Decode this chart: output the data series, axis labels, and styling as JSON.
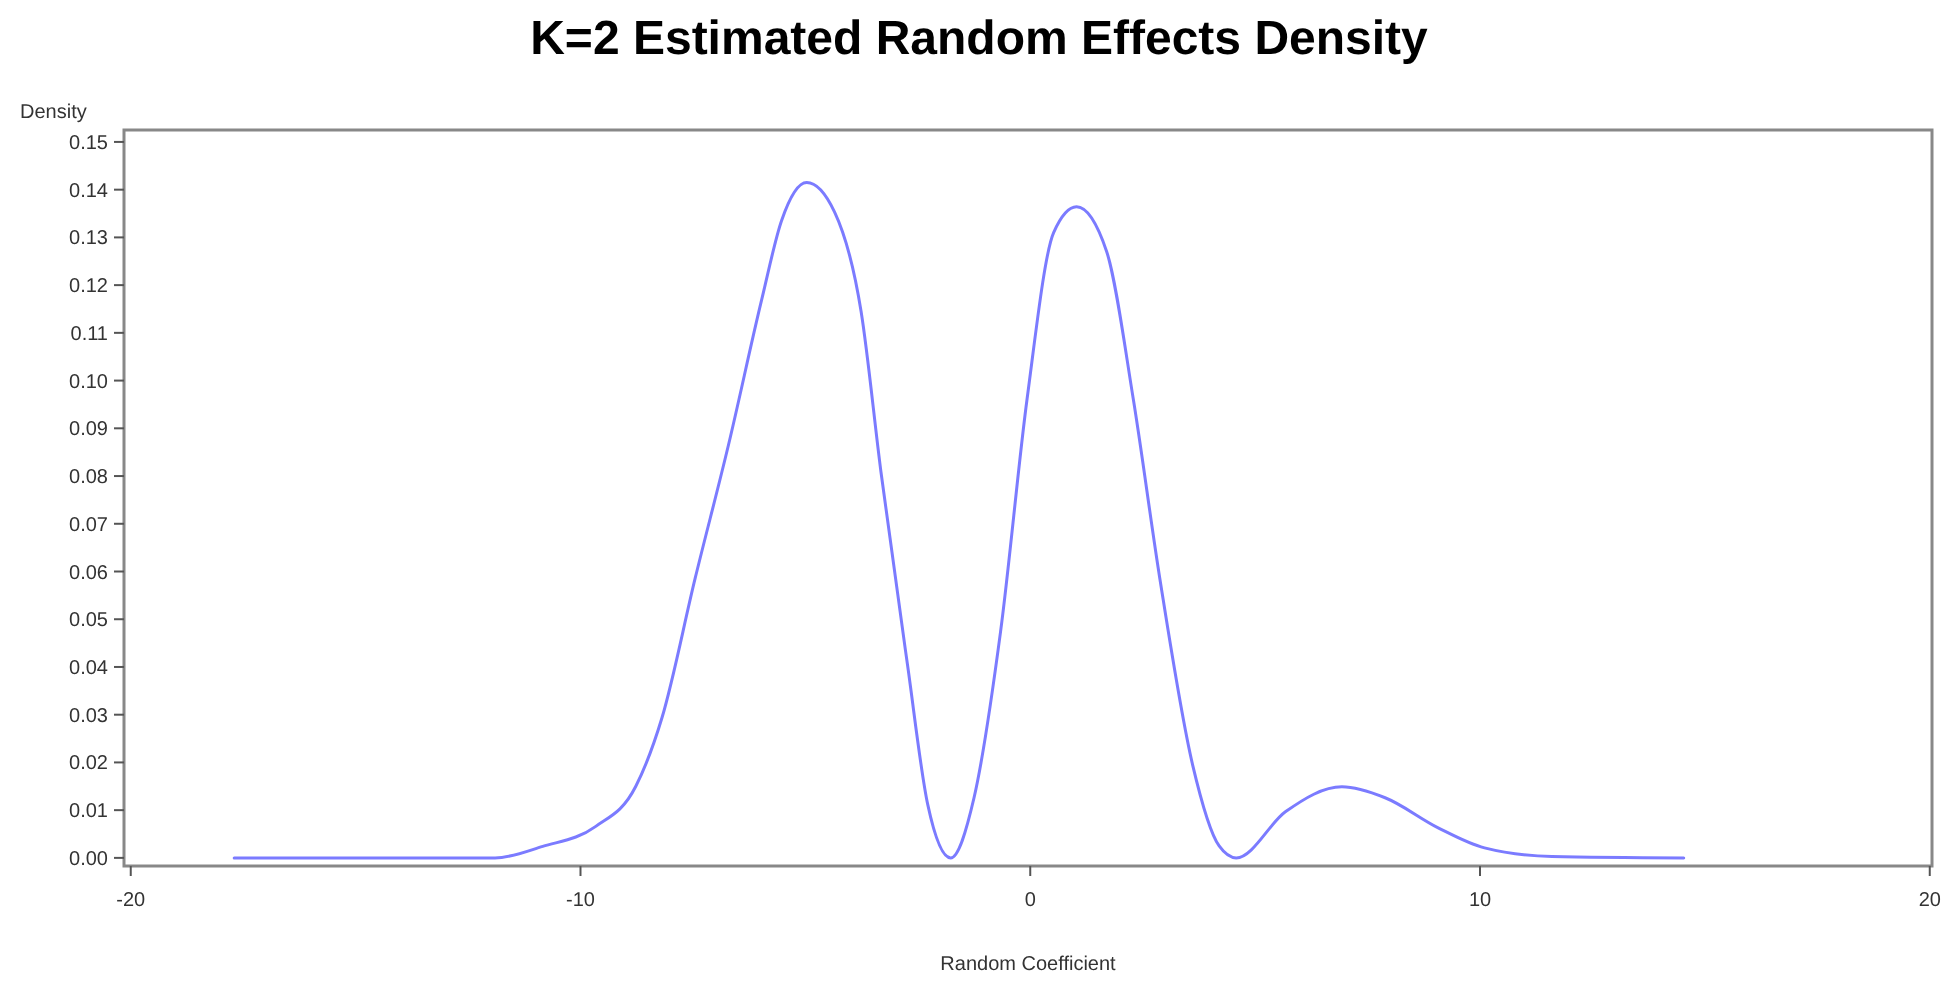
{
  "chart_data": {
    "type": "line",
    "title": "K=2 Estimated Random Effects Density",
    "xlabel": "Random Coefficient",
    "ylabel": "Density",
    "xlim": [
      -20.15,
      20.05
    ],
    "ylim": [
      -0.0017,
      0.1525
    ],
    "xticks": [
      -20,
      -10,
      0,
      10,
      20
    ],
    "yticks": [
      {
        "value": 0,
        "label": "0.00"
      },
      {
        "value": 0.01,
        "label": "0.01"
      },
      {
        "value": 0.02,
        "label": "0.02"
      },
      {
        "value": 0.03,
        "label": "0.03"
      },
      {
        "value": 0.04,
        "label": "0.04"
      },
      {
        "value": 0.05,
        "label": "0.05"
      },
      {
        "value": 0.06,
        "label": "0.06"
      },
      {
        "value": 0.07,
        "label": "0.07"
      },
      {
        "value": 0.08,
        "label": "0.08"
      },
      {
        "value": 0.09,
        "label": "0.09"
      },
      {
        "value": 0.1,
        "label": "0.10"
      },
      {
        "value": 0.11,
        "label": "0.11"
      },
      {
        "value": 0.12,
        "label": "0.12"
      },
      {
        "value": 0.13,
        "label": "0.13"
      },
      {
        "value": 0.14,
        "label": "0.14"
      },
      {
        "value": 0.15,
        "label": "0.15"
      }
    ],
    "grid": false,
    "marker": "none",
    "line_style": "solid",
    "x": [
      -17.7,
      -11.9,
      -10.84,
      -9.66,
      -8.77,
      -8.19,
      -7.45,
      -6.71,
      -5.97,
      -5.53,
      -4.97,
      -4.35,
      -3.76,
      -3.32,
      -2.73,
      -2.28,
      -1.77,
      -1.25,
      -0.66,
      -0.07,
      0.52,
      1.03,
      1.7,
      2.29,
      2.88,
      3.61,
      4.2,
      4.58,
      5.68,
      6.93,
      7.89,
      9.07,
      10.1,
      11.6,
      14.53
    ],
    "series": [
      {
        "color": "#7b7bff",
        "values": [
          0,
          0,
          0.0024,
          0.0066,
          0.015,
          0.0293,
          0.0586,
          0.0865,
          0.117,
          0.1335,
          0.1415,
          0.1353,
          0.1144,
          0.0809,
          0.0405,
          0.0112,
          0,
          0.0126,
          0.0474,
          0.0962,
          0.131,
          0.1364,
          0.127,
          0.0962,
          0.0586,
          0.0195,
          0.0025,
          0,
          0.0097,
          0.0149,
          0.0126,
          0.0063,
          0.0021,
          0.0003,
          0
        ]
      }
    ]
  }
}
